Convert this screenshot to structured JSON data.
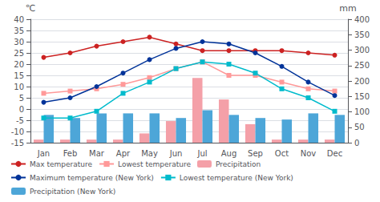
{
  "chart_data": {
    "type": "line",
    "categories": [
      "Jan",
      "Feb",
      "Mar",
      "Apr",
      "May",
      "Jun",
      "Jul",
      "Aug",
      "Sep",
      "Oct",
      "Nov",
      "Dec"
    ],
    "ylabel": "℃",
    "y2label": "mm",
    "ylim": [
      -15,
      40
    ],
    "yticks": [
      -15,
      -10,
      -5,
      0,
      5,
      10,
      15,
      20,
      25,
      30,
      35,
      40
    ],
    "y2lim": [
      0,
      400
    ],
    "y2ticks": [
      0,
      50,
      100,
      150,
      200,
      250,
      300,
      350,
      400
    ],
    "grid": true,
    "legend": "bottom",
    "series": [
      {
        "name": "Max temperature",
        "type": "line",
        "marker": "circle",
        "color": "#CC2222",
        "values": [
          23,
          25,
          28,
          30,
          32,
          29,
          26,
          26,
          26,
          26,
          25,
          24
        ]
      },
      {
        "name": "Lowest temperature",
        "type": "line",
        "marker": "square",
        "color": "#FF9999",
        "values": [
          7,
          8,
          9,
          11,
          14,
          18,
          21,
          15,
          15,
          12,
          9,
          8
        ]
      },
      {
        "name": "Precipitation",
        "type": "bar",
        "axis": "y2",
        "color": "#F4A0A8",
        "values": [
          10,
          10,
          10,
          10,
          30,
          70,
          210,
          140,
          60,
          10,
          10,
          10
        ]
      },
      {
        "name": "Maximum temperature (New York)",
        "type": "line",
        "marker": "circle",
        "color": "#003399",
        "values": [
          3,
          5,
          10,
          16,
          22,
          27,
          30,
          29,
          25,
          19,
          12,
          6
        ]
      },
      {
        "name": "Lowest temperature (New York)",
        "type": "line",
        "marker": "square",
        "color": "#00BBCC",
        "values": [
          -4,
          -4,
          -1,
          7,
          12,
          18,
          21,
          20,
          16,
          9,
          5,
          -1
        ]
      },
      {
        "name": "Precipitation (New York)",
        "type": "bar",
        "axis": "y2",
        "color": "#4DA6D8",
        "values": [
          90,
          80,
          95,
          95,
          95,
          80,
          105,
          90,
          80,
          75,
          95,
          90
        ]
      }
    ]
  }
}
